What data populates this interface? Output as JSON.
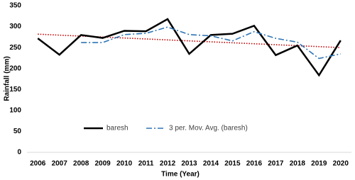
{
  "chart_data": {
    "type": "line",
    "x_label": "Time (Year)",
    "y_label": "Rainfall (mm)",
    "categories": [
      "2006",
      "2007",
      "2008",
      "2009",
      "2010",
      "2011",
      "2012",
      "2013",
      "2014",
      "2015",
      "2016",
      "2017",
      "2018",
      "2019",
      "2020"
    ],
    "series": [
      {
        "name": "baresh",
        "color": "#000000",
        "style": "solid",
        "values": [
          272,
          233,
          280,
          273,
          290,
          289,
          318,
          235,
          280,
          283,
          302,
          232,
          255,
          184,
          267
        ]
      },
      {
        "name": "3 per. Mov. Avg. (baresh)",
        "color": "#2e75b6",
        "style": "dashdot",
        "values": [
          null,
          null,
          262,
          262,
          281,
          284,
          299,
          281,
          278,
          266,
          288,
          272,
          263,
          224,
          235
        ]
      }
    ],
    "trendline": {
      "color": "#c00000",
      "values": [
        282,
        250
      ]
    },
    "ylim": [
      0,
      350
    ],
    "yticks": [
      0,
      50,
      100,
      150,
      200,
      250,
      300,
      350
    ],
    "grid": false,
    "legend": "bottom-left"
  }
}
